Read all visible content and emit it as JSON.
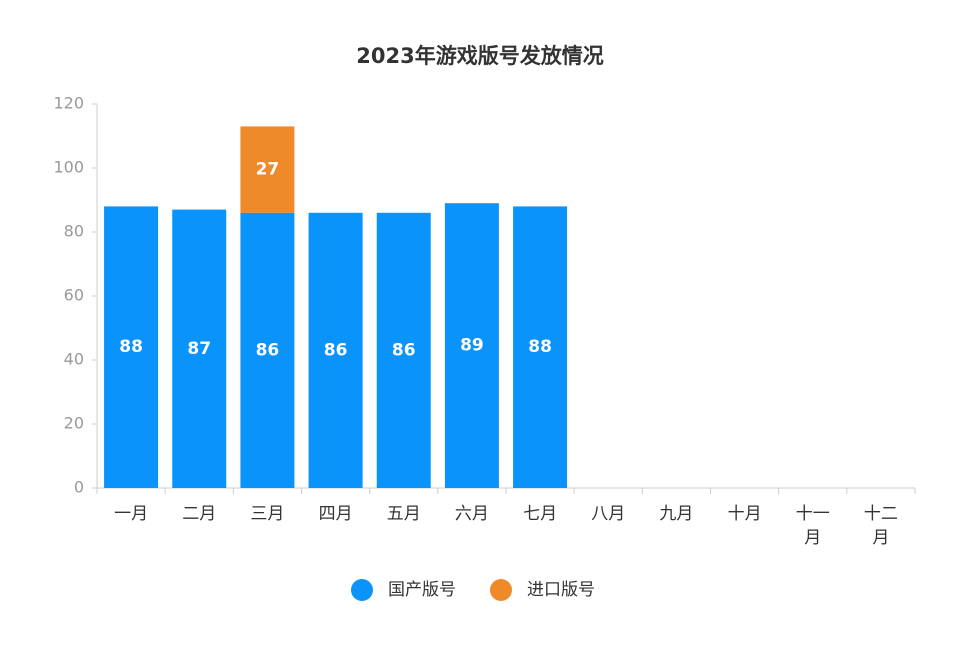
{
  "chart_data": {
    "type": "bar",
    "stacked": true,
    "title": "2023年游戏版号发放情况",
    "categories": [
      "一月",
      "二月",
      "三月",
      "四月",
      "五月",
      "六月",
      "七月",
      "八月",
      "九月",
      "十月",
      "十一月",
      "十二月"
    ],
    "series": [
      {
        "name": "国产版号",
        "color": "#0a93fb",
        "values": [
          88,
          87,
          86,
          86,
          86,
          89,
          88,
          null,
          null,
          null,
          null,
          null
        ]
      },
      {
        "name": "进口版号",
        "color": "#ef8a2a",
        "values": [
          null,
          null,
          27,
          null,
          null,
          null,
          null,
          null,
          null,
          null,
          null,
          null
        ]
      }
    ],
    "ylim": [
      0,
      120
    ],
    "yticks": [
      0,
      20,
      40,
      60,
      80,
      100,
      120
    ],
    "grid": false,
    "legend": "bottom"
  }
}
